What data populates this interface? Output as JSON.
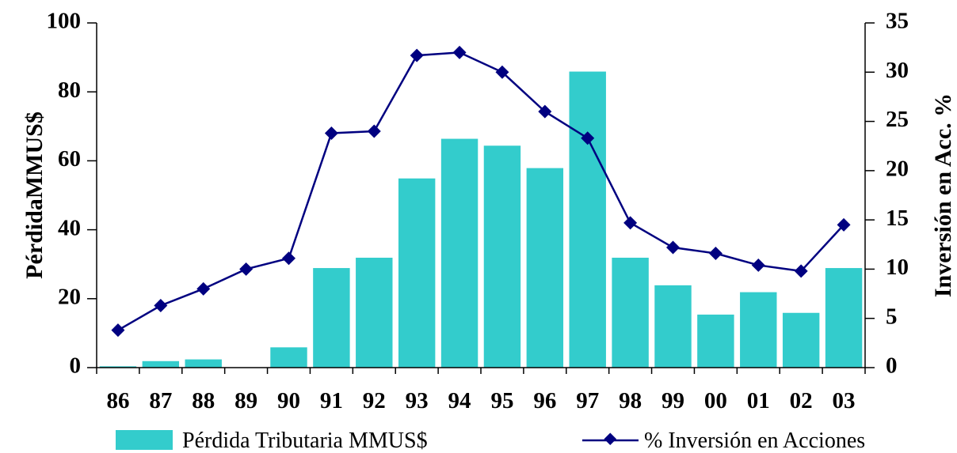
{
  "chart_data": {
    "type": "bar",
    "categories": [
      "86",
      "87",
      "88",
      "89",
      "90",
      "91",
      "92",
      "93",
      "94",
      "95",
      "96",
      "97",
      "98",
      "99",
      "00",
      "01",
      "02",
      "03"
    ],
    "series": [
      {
        "name": "Pérdida Tributaria MMUS$",
        "kind": "bar",
        "axis": "left",
        "color": "#33CCCC",
        "values": [
          0.5,
          2,
          2.5,
          null,
          6,
          29,
          32,
          55,
          66.5,
          64.5,
          58,
          86,
          32,
          24,
          15.5,
          22,
          16,
          29
        ]
      },
      {
        "name": "% Inversión en Acciones",
        "kind": "line",
        "axis": "right",
        "color": "#000080",
        "values": [
          3.8,
          6.3,
          8.0,
          10.0,
          11.1,
          23.8,
          24.0,
          31.7,
          32.0,
          30.0,
          26.0,
          23.3,
          14.7,
          12.2,
          11.6,
          10.4,
          9.8,
          14.5
        ]
      }
    ],
    "ylabel": "PérdidaMMUS$",
    "ylabel_right": "Inversión en Acc. %",
    "ylim": [
      0,
      100
    ],
    "yticks": [
      "0",
      "20",
      "40",
      "60",
      "80",
      "100"
    ],
    "ylim_right": [
      0,
      35
    ],
    "yticks_right": [
      "0",
      "5",
      "10",
      "15",
      "20",
      "25",
      "30",
      "35"
    ],
    "grid": false,
    "legend_placement": "bottom"
  }
}
